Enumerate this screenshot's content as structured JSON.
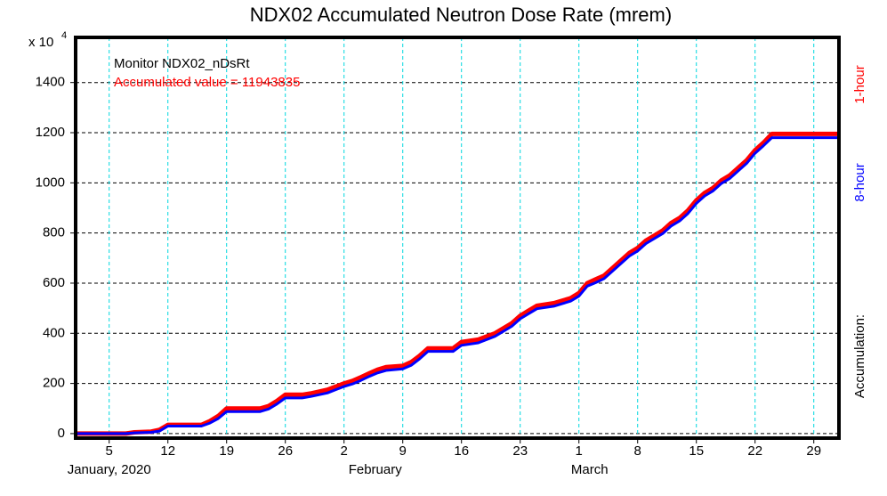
{
  "chart_data": {
    "type": "line",
    "title": "NDX02 Accumulated Neutron Dose Rate (mrem)",
    "y_multiplier": {
      "base": "x 10",
      "exponent": "4"
    },
    "annotations": [
      "Monitor NDX02_nDsRt",
      "Accumulated value = 11943835"
    ],
    "right_label": "Accumulation:",
    "month_labels": [
      "January, 2020",
      "February",
      "March"
    ],
    "x": [
      1,
      7,
      8,
      10,
      11,
      12,
      16,
      17,
      18,
      19,
      23,
      24,
      25,
      26,
      28,
      29,
      31,
      33,
      34,
      35,
      36,
      37,
      38,
      40,
      41,
      42,
      43,
      46,
      47,
      49,
      51,
      53,
      54,
      55,
      56,
      58,
      60,
      61,
      62,
      63,
      64,
      65,
      66,
      67,
      68,
      69,
      70,
      71,
      72,
      73,
      74,
      75,
      76,
      77,
      78,
      79,
      80,
      81,
      82,
      83,
      84,
      92
    ],
    "series": [
      {
        "name": "1-hour",
        "color": "#ff0000",
        "values": [
          0,
          0,
          5,
          8,
          15,
          35,
          35,
          50,
          70,
          100,
          100,
          110,
          130,
          155,
          155,
          160,
          175,
          200,
          210,
          225,
          240,
          255,
          265,
          270,
          285,
          310,
          340,
          340,
          365,
          375,
          400,
          440,
          470,
          490,
          510,
          520,
          540,
          560,
          600,
          615,
          630,
          660,
          690,
          720,
          740,
          770,
          790,
          810,
          840,
          860,
          890,
          930,
          960,
          980,
          1010,
          1030,
          1060,
          1090,
          1130,
          1160,
          1195,
          1195
        ]
      },
      {
        "name": "8-hour",
        "color": "#0000ff",
        "values": [
          0,
          0,
          3,
          5,
          10,
          30,
          30,
          42,
          60,
          88,
          88,
          98,
          118,
          142,
          142,
          148,
          162,
          188,
          198,
          212,
          228,
          242,
          252,
          258,
          272,
          298,
          328,
          328,
          352,
          362,
          388,
          428,
          458,
          478,
          498,
          508,
          528,
          548,
          588,
          602,
          618,
          648,
          678,
          708,
          728,
          758,
          778,
          798,
          828,
          848,
          878,
          918,
          948,
          968,
          998,
          1018,
          1048,
          1078,
          1118,
          1148,
          1180,
          1180
        ]
      }
    ],
    "xlim": [
      1,
      92
    ],
    "xticks": [
      5,
      12,
      19,
      26,
      {
        "value": 33,
        "label": "2"
      },
      {
        "value": 40,
        "label": "9"
      },
      {
        "value": 47,
        "label": "16"
      },
      {
        "value": 54,
        "label": "23"
      },
      {
        "value": 61,
        "label": "1"
      },
      {
        "value": 68,
        "label": "8"
      },
      {
        "value": 75,
        "label": "15"
      },
      {
        "value": 82,
        "label": "22"
      },
      {
        "value": 89,
        "label": "29"
      }
    ],
    "ylim": [
      -18,
      1580
    ],
    "yticks": [
      0,
      200,
      400,
      600,
      800,
      1000,
      1200,
      1400
    ],
    "grid": true
  }
}
